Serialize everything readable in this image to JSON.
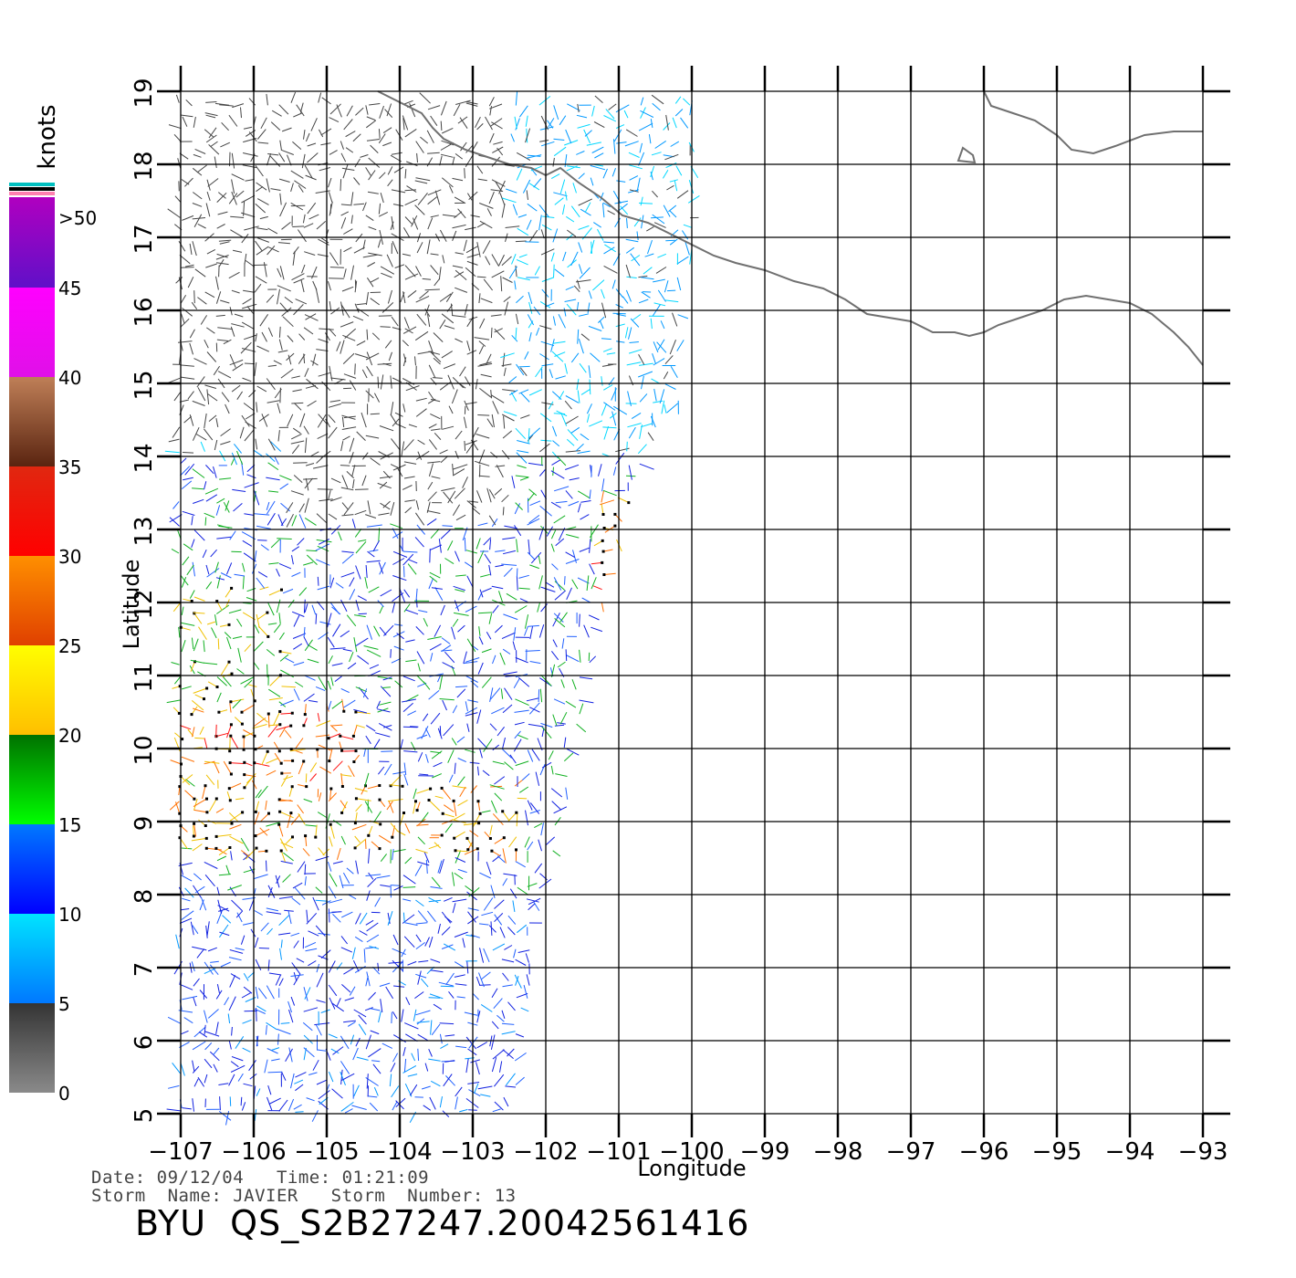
{
  "map": {
    "x_axis_label": "Longitude",
    "y_axis_label": "Latitude",
    "lon_ticks": [
      "−107",
      "−106",
      "−105",
      "−104",
      "−103",
      "−102",
      "−101",
      "−100",
      "−99",
      "−98",
      "−97",
      "−96",
      "−95",
      "−94",
      "−93"
    ],
    "lat_ticks": [
      "5",
      "6",
      "7",
      "8",
      "9",
      "10",
      "11",
      "12",
      "13",
      "14",
      "15",
      "16",
      "17",
      "18",
      "19"
    ],
    "lon_range": [
      -107,
      -93
    ],
    "lat_range": [
      5,
      19
    ],
    "grid": true
  },
  "colorbar": {
    "unit_label": "knots",
    "tick_labels": [
      "0",
      "5",
      "10",
      "15",
      "20",
      "25",
      "30",
      "35",
      "40",
      "45",
      ">50"
    ],
    "bands": [
      {
        "from": 0,
        "to": 5,
        "top": "#333333",
        "bottom": "#8a8a8a"
      },
      {
        "from": 5,
        "to": 10,
        "top": "#00e5ff",
        "bottom": "#0078ff"
      },
      {
        "from": 10,
        "to": 15,
        "top": "#007aff",
        "bottom": "#0000ff"
      },
      {
        "from": 15,
        "to": 20,
        "top": "#007000",
        "bottom": "#00ff00"
      },
      {
        "from": 20,
        "to": 25,
        "top": "#ffff00",
        "bottom": "#ffbf00"
      },
      {
        "from": 25,
        "to": 30,
        "top": "#ff9000",
        "bottom": "#e04000"
      },
      {
        "from": 30,
        "to": 35,
        "top": "#e02810",
        "bottom": "#ff0000"
      },
      {
        "from": 35,
        "to": 40,
        "top": "#c08058",
        "bottom": "#5a2410"
      },
      {
        "from": 40,
        "to": 45,
        "top": "#ff00ff",
        "bottom": "#e010e8"
      },
      {
        "from": 45,
        "to": 50,
        "top": "#b000c0",
        "bottom": "#6010c8"
      }
    ],
    "over_colors": [
      "#00c0c0",
      "#000000",
      "#ff80b0"
    ]
  },
  "footer": {
    "line1": "Date: 09/12/04   Time: 01:21:09",
    "line2": "Storm  Name: JAVIER   Storm  Number: 13",
    "product": "BYU  QS_S2B27247.20042561416"
  },
  "coastline_color": "#707070"
}
